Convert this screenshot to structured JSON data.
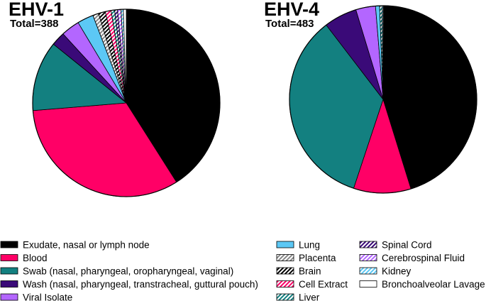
{
  "chart_data": [
    {
      "type": "pie",
      "title": "EHV-1",
      "subtitle": "Total=388",
      "slices": [
        {
          "label": "Exudate, nasal or lymph node",
          "value": 41.0
        },
        {
          "label": "Blood",
          "value": 32.7
        },
        {
          "label": "Swab (nasal, pharyngeal, oropharyngeal, vaginal)",
          "value": 12.1
        },
        {
          "label": "Wash (nasal, pharyngeal, transtracheal, guttural pouch)",
          "value": 2.4
        },
        {
          "label": "Viral Isolate",
          "value": 3.2
        },
        {
          "label": "Lung",
          "value": 2.8
        },
        {
          "label": "Placenta",
          "value": 1.0
        },
        {
          "label": "Brain",
          "value": 1.2
        },
        {
          "label": "Cell Extract",
          "value": 1.0
        },
        {
          "label": "Liver",
          "value": 0.6
        },
        {
          "label": "Spinal Cord",
          "value": 0.5
        },
        {
          "label": "Cerebrospinal Fluid",
          "value": 0.6
        },
        {
          "label": "Kidney",
          "value": 0.4
        },
        {
          "label": "Bronchoalveolar Lavage",
          "value": 0.5
        }
      ]
    },
    {
      "type": "pie",
      "title": "EHV-4",
      "subtitle": "Total=483",
      "slices": [
        {
          "label": "Exudate, nasal or lymph node",
          "value": 45.2
        },
        {
          "label": "Blood",
          "value": 9.9
        },
        {
          "label": "Swab (nasal, pharyngeal, oropharyngeal, vaginal)",
          "value": 34.5
        },
        {
          "label": "Wash (nasal, pharyngeal, transtracheal, guttural pouch)",
          "value": 5.7
        },
        {
          "label": "Viral Isolate",
          "value": 3.4
        },
        {
          "label": "Lung",
          "value": 0.7
        },
        {
          "label": "Liver",
          "value": 0.4
        },
        {
          "label": "Kidney",
          "value": 0.2
        }
      ]
    }
  ],
  "legend": [
    {
      "label": "Exudate, nasal or lymph node",
      "color": "#000000",
      "pattern": "solid"
    },
    {
      "label": "Blood",
      "color": "#ff0066",
      "pattern": "solid"
    },
    {
      "label": "Swab (nasal, pharyngeal, oropharyngeal, vaginal)",
      "color": "#138080",
      "pattern": "solid"
    },
    {
      "label": "Wash (nasal, pharyngeal, transtracheal, guttural pouch)",
      "color": "#3a0a78",
      "pattern": "solid"
    },
    {
      "label": "Viral Isolate",
      "color": "#b366ff",
      "pattern": "solid"
    },
    {
      "label": "Lung",
      "color": "#5cc8f5",
      "pattern": "solid"
    },
    {
      "label": "Placenta",
      "color": "#888888",
      "pattern": "hatch"
    },
    {
      "label": "Brain",
      "color": "#000000",
      "pattern": "hatch"
    },
    {
      "label": "Cell Extract",
      "color": "#ff0066",
      "pattern": "hatch"
    },
    {
      "label": "Liver",
      "color": "#138080",
      "pattern": "hatch"
    },
    {
      "label": "Spinal Cord",
      "color": "#3a0a78",
      "pattern": "hatch"
    },
    {
      "label": "Cerebrospinal Fluid",
      "color": "#b366ff",
      "pattern": "hatch"
    },
    {
      "label": "Kidney",
      "color": "#5cc8f5",
      "pattern": "hatch"
    },
    {
      "label": "Bronchoalveolar Lavage",
      "color": "#ffffff",
      "pattern": "solid"
    }
  ]
}
